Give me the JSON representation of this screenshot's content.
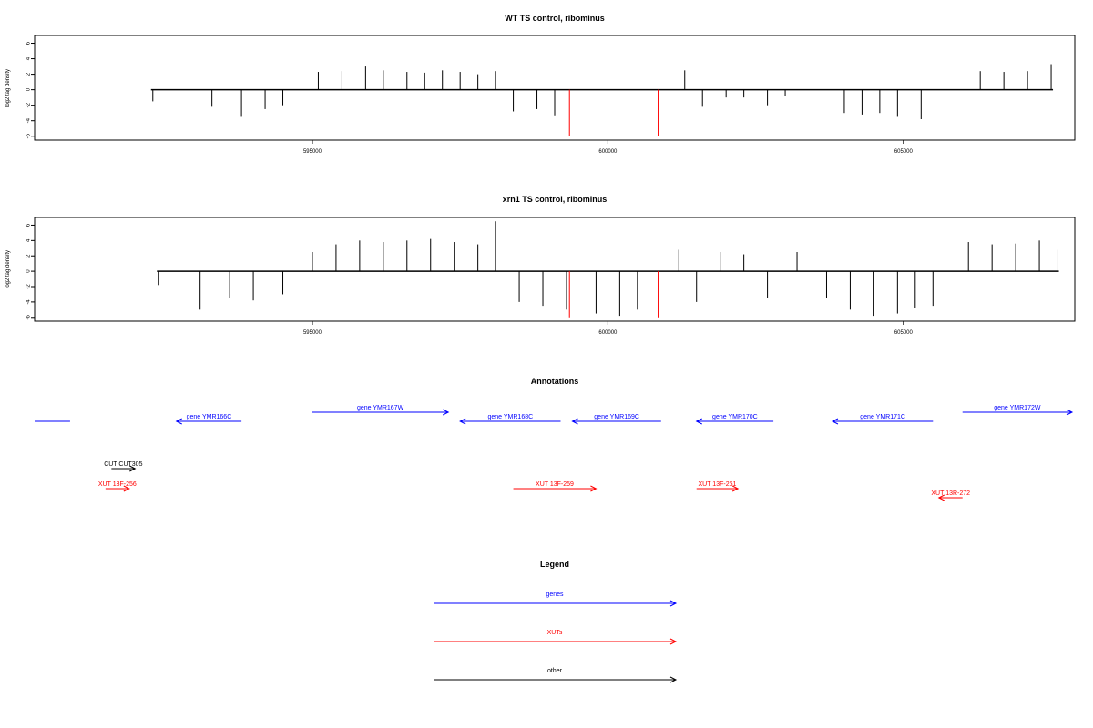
{
  "chart_data": [
    {
      "type": "bar",
      "title": "WT TS control, ribominus",
      "ylabel": "log2 tag density",
      "xlabel": "",
      "xlim": [
        590300,
        607900
      ],
      "ylim": [
        -6.5,
        7
      ],
      "yticks": [
        -6,
        -4,
        -2,
        0,
        2,
        4,
        6
      ],
      "xticks": [
        595000,
        600000,
        605000
      ],
      "xtick_labels": [
        "595000",
        "600000",
        "605000"
      ],
      "baseline": 0,
      "series": [
        {
          "color": "#000000",
          "x": [
            592300,
            593300,
            593800,
            594200,
            594500,
            595100,
            595500,
            595900,
            596200,
            596600,
            596900,
            597200,
            597500,
            597800,
            598100,
            598400,
            598800,
            599100,
            601300,
            601600,
            602000,
            602300,
            602700,
            603000,
            604000,
            604300,
            604600,
            604900,
            605300,
            606300,
            606700,
            607100,
            607500
          ],
          "y": [
            -1.5,
            -2.2,
            -3.5,
            -2.5,
            -2,
            2.3,
            2.4,
            3,
            2.5,
            2.3,
            2.2,
            2.5,
            2.3,
            2,
            2.4,
            -2.8,
            -2.5,
            -3.3,
            2.5,
            -2.2,
            -1,
            -1,
            -2,
            -0.8,
            -3,
            -3.2,
            -3,
            -3.5,
            -3.8,
            2.4,
            2.3,
            2.4,
            3.3
          ]
        },
        {
          "color": "#ff0000",
          "x": [
            599350,
            600850
          ],
          "y": [
            -6,
            -6
          ]
        }
      ]
    },
    {
      "type": "bar",
      "title": "xrn1 TS control, ribominus",
      "ylabel": "log2 tag density",
      "xlabel": "",
      "xlim": [
        590300,
        607900
      ],
      "ylim": [
        -6.5,
        7
      ],
      "yticks": [
        -6,
        -4,
        -2,
        0,
        2,
        4,
        6
      ],
      "xticks": [
        595000,
        600000,
        605000
      ],
      "xtick_labels": [
        "595000",
        "600000",
        "605000"
      ],
      "baseline": 0,
      "series": [
        {
          "color": "#000000",
          "x": [
            592400,
            593100,
            593600,
            594000,
            594500,
            595000,
            595400,
            595800,
            596200,
            596600,
            597000,
            597400,
            597800,
            598100,
            598500,
            598900,
            599300,
            599800,
            600200,
            600500,
            601200,
            601500,
            601900,
            602300,
            602700,
            603200,
            603700,
            604100,
            604500,
            604900,
            605200,
            605500,
            606100,
            606500,
            606900,
            607300,
            607600
          ],
          "y": [
            -1.8,
            -5,
            -3.5,
            -3.8,
            -3,
            2.5,
            3.5,
            4,
            3.8,
            4,
            4.2,
            3.8,
            3.5,
            6.5,
            -4,
            -4.5,
            -5,
            -5.5,
            -5.8,
            -5,
            2.8,
            -4,
            2.5,
            2.2,
            -3.5,
            2.5,
            -3.5,
            -5,
            -5.8,
            -5.5,
            -4.8,
            -4.5,
            3.8,
            3.5,
            3.6,
            4,
            2.8
          ]
        },
        {
          "color": "#ff0000",
          "x": [
            599350,
            600850
          ],
          "y": [
            -6,
            -6
          ]
        }
      ]
    }
  ],
  "annotations_panel": {
    "title": "Annotations",
    "features": [
      {
        "label": "",
        "category": "gene",
        "start": 590300,
        "end": 590900,
        "strand": "none",
        "row": 1
      },
      {
        "label": "gene YMR166C",
        "category": "gene",
        "start": 592700,
        "end": 593800,
        "strand": "-",
        "row": 1
      },
      {
        "label": "gene YMR167W",
        "category": "gene",
        "start": 595000,
        "end": 597300,
        "strand": "+",
        "row": 0
      },
      {
        "label": "gene YMR168C",
        "category": "gene",
        "start": 597500,
        "end": 599200,
        "strand": "-",
        "row": 1
      },
      {
        "label": "gene YMR169C",
        "category": "gene",
        "start": 599400,
        "end": 600900,
        "strand": "-",
        "row": 1
      },
      {
        "label": "gene YMR170C",
        "category": "gene",
        "start": 601500,
        "end": 602800,
        "strand": "-",
        "row": 1
      },
      {
        "label": "gene YMR171C",
        "category": "gene",
        "start": 603800,
        "end": 605500,
        "strand": "-",
        "row": 1
      },
      {
        "label": "gene YMR172W",
        "category": "gene",
        "start": 606000,
        "end": 608200,
        "strand": "+",
        "row": 0
      },
      {
        "label": "CUT CUT305",
        "category": "other",
        "start": 591600,
        "end": 592000,
        "strand": "+",
        "row": 2
      },
      {
        "label": "XUT 13F-256",
        "category": "xut",
        "start": 591500,
        "end": 591900,
        "strand": "+",
        "row": 3
      },
      {
        "label": "XUT 13F-259",
        "category": "xut",
        "start": 598400,
        "end": 599800,
        "strand": "+",
        "row": 3
      },
      {
        "label": "XUT 13F-261",
        "category": "xut",
        "start": 601500,
        "end": 602200,
        "strand": "+",
        "row": 3
      },
      {
        "label": "XUT 13R-272",
        "category": "xut",
        "start": 605600,
        "end": 606000,
        "strand": "-",
        "row": 4
      }
    ]
  },
  "legend_panel": {
    "title": "Legend",
    "items": [
      {
        "label": "genes",
        "category": "gene"
      },
      {
        "label": "XUTs",
        "category": "xut"
      },
      {
        "label": "other",
        "category": "other"
      }
    ]
  },
  "colors": {
    "gene": "#0000ff",
    "xut": "#ff0000",
    "other": "#000000"
  }
}
